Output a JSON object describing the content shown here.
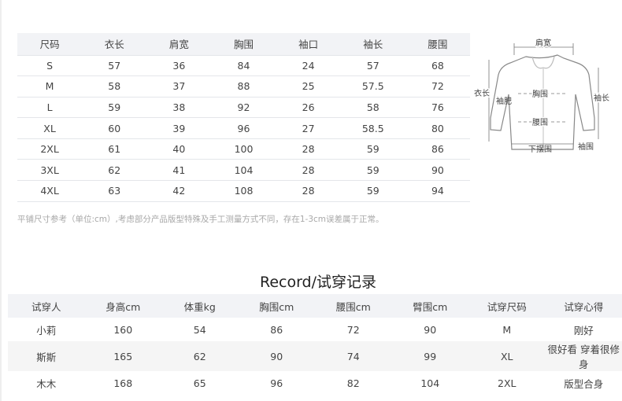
{
  "size_table": {
    "headers": [
      "尺码",
      "衣长",
      "肩宽",
      "胸围",
      "袖口",
      "袖长",
      "腰围"
    ],
    "rows": [
      [
        "S",
        "57",
        "36",
        "84",
        "24",
        "57",
        "68"
      ],
      [
        "M",
        "58",
        "37",
        "88",
        "25",
        "57.5",
        "72"
      ],
      [
        "L",
        "59",
        "38",
        "92",
        "26",
        "58",
        "76"
      ],
      [
        "XL",
        "60",
        "39",
        "96",
        "27",
        "58.5",
        "80"
      ],
      [
        "2XL",
        "61",
        "40",
        "100",
        "28",
        "59",
        "86"
      ],
      [
        "3XL",
        "62",
        "41",
        "104",
        "28",
        "59",
        "90"
      ],
      [
        "4XL",
        "63",
        "42",
        "108",
        "28",
        "59",
        "94"
      ]
    ]
  },
  "diagram": {
    "shoulder": "肩宽",
    "length": "衣长",
    "sleeve_width": "袖肥",
    "chest": "胸围",
    "waist": "腰围",
    "hem": "下摆围",
    "sleeve_length": "袖长",
    "cuff": "袖围"
  },
  "note": "平铺尺寸参考（单位:cm）,考虑部分产品版型特殊及手工测量方式不同，存在1-3cm误差属于正常。",
  "record": {
    "title": "Record/试穿记录",
    "headers": [
      "试穿人",
      "身高cm",
      "体重kg",
      "胸围cm",
      "腰围cm",
      "臂围cm",
      "试穿尺码",
      "试穿心得"
    ],
    "rows": [
      [
        "小莉",
        "160",
        "54",
        "86",
        "72",
        "90",
        "M",
        "刚好"
      ],
      [
        "斯斯",
        "165",
        "62",
        "90",
        "74",
        "99",
        "XL",
        "很好看 穿着很修身"
      ],
      [
        "木木",
        "168",
        "65",
        "96",
        "82",
        "104",
        "2XL",
        "版型合身"
      ]
    ]
  }
}
